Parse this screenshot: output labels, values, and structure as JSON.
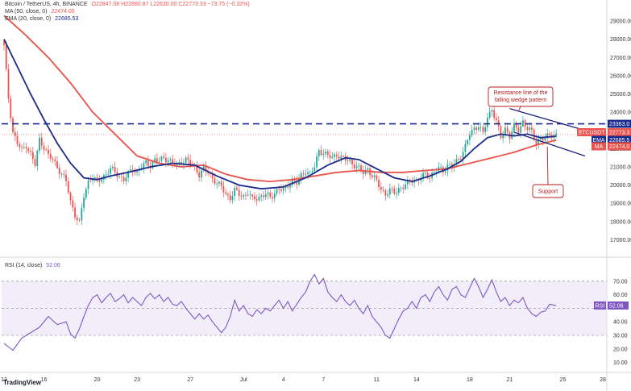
{
  "header": {
    "symbol": "Bitcoin / TetherUS, 4h, BINANCE",
    "ohlc": "O22847.08 H22880.87 L22630.00 C22773.33 −73.75 (−0.32%)",
    "ma_legend": "MA (50, close, 0)",
    "ma_value": "22474.05",
    "ema_legend": "EMA (20, close, 0)",
    "ema_value": "22685.53",
    "rsi_legend": "RSI (14, close)",
    "rsi_value": "52.06"
  },
  "colors": {
    "up": "#26a69a",
    "down": "#ef5350",
    "ma": "#e8534a",
    "ema": "#1a2b8c",
    "rsi": "#7e57c2",
    "resistance": "#1a237e",
    "annotation": "#b71c1c"
  },
  "branding": {
    "logo": "TradingView"
  },
  "chart_data": {
    "type": "candlestick",
    "price_axis": {
      "ylim": [
        16800,
        29800
      ],
      "ticks": [
        "29000.00",
        "28000.00",
        "27000.00",
        "26000.00",
        "25000.00",
        "24000.00",
        "22000.00",
        "21000.00",
        "20000.00",
        "19000.00",
        "18000.00",
        "17000.00"
      ]
    },
    "x_axis": {
      "ticks": [
        {
          "label": "13",
          "t": 0
        },
        {
          "label": "16",
          "t": 18
        },
        {
          "label": "20",
          "t": 42
        },
        {
          "label": "23",
          "t": 60
        },
        {
          "label": "27",
          "t": 84
        },
        {
          "label": "Jul",
          "t": 108
        },
        {
          "label": "4",
          "t": 126
        },
        {
          "label": "7",
          "t": 144
        },
        {
          "label": "11",
          "t": 168
        },
        {
          "label": "14",
          "t": 186
        },
        {
          "label": "18",
          "t": 210
        },
        {
          "label": "21",
          "t": 228
        },
        {
          "label": "25",
          "t": 252
        },
        {
          "label": "28",
          "t": 270
        }
      ]
    },
    "last_candle_t": 249,
    "close_path": [
      [
        0,
        27600
      ],
      [
        2,
        24800
      ],
      [
        4,
        22900
      ],
      [
        6,
        22300
      ],
      [
        8,
        21900
      ],
      [
        10,
        22200
      ],
      [
        12,
        21700
      ],
      [
        14,
        21100
      ],
      [
        16,
        22500
      ],
      [
        18,
        22100
      ],
      [
        20,
        21600
      ],
      [
        22,
        21400
      ],
      [
        24,
        21000
      ],
      [
        26,
        20600
      ],
      [
        28,
        20200
      ],
      [
        30,
        19100
      ],
      [
        32,
        18400
      ],
      [
        34,
        17900
      ],
      [
        36,
        19400
      ],
      [
        38,
        20200
      ],
      [
        40,
        20500
      ],
      [
        42,
        20100
      ],
      [
        44,
        20400
      ],
      [
        46,
        20600
      ],
      [
        48,
        20900
      ],
      [
        50,
        20700
      ],
      [
        52,
        20500
      ],
      [
        54,
        20300
      ],
      [
        56,
        20600
      ],
      [
        58,
        20900
      ],
      [
        60,
        20700
      ],
      [
        62,
        21000
      ],
      [
        64,
        21200
      ],
      [
        66,
        21100
      ],
      [
        68,
        21400
      ],
      [
        70,
        21300
      ],
      [
        72,
        21500
      ],
      [
        74,
        21400
      ],
      [
        76,
        21200
      ],
      [
        78,
        21100
      ],
      [
        80,
        21300
      ],
      [
        82,
        21400
      ],
      [
        84,
        21200
      ],
      [
        86,
        21000
      ],
      [
        88,
        20600
      ],
      [
        90,
        20900
      ],
      [
        92,
        20700
      ],
      [
        94,
        20400
      ],
      [
        96,
        20100
      ],
      [
        98,
        19900
      ],
      [
        100,
        19500
      ],
      [
        102,
        19300
      ],
      [
        104,
        19700
      ],
      [
        106,
        19500
      ],
      [
        108,
        19400
      ],
      [
        110,
        19600
      ],
      [
        112,
        19200
      ],
      [
        114,
        19300
      ],
      [
        116,
        19400
      ],
      [
        118,
        19500
      ],
      [
        120,
        19300
      ],
      [
        122,
        19600
      ],
      [
        124,
        19800
      ],
      [
        126,
        19700
      ],
      [
        128,
        20000
      ],
      [
        130,
        20300
      ],
      [
        132,
        20100
      ],
      [
        134,
        20500
      ],
      [
        136,
        20800
      ],
      [
        138,
        20600
      ],
      [
        140,
        21000
      ],
      [
        142,
        21900
      ],
      [
        144,
        21800
      ],
      [
        146,
        21600
      ],
      [
        148,
        21500
      ],
      [
        150,
        21700
      ],
      [
        152,
        21500
      ],
      [
        154,
        21400
      ],
      [
        156,
        21300
      ],
      [
        158,
        21100
      ],
      [
        160,
        20900
      ],
      [
        162,
        20700
      ],
      [
        164,
        20900
      ],
      [
        166,
        20500
      ],
      [
        168,
        20200
      ],
      [
        170,
        19800
      ],
      [
        172,
        19500
      ],
      [
        174,
        19700
      ],
      [
        176,
        19600
      ],
      [
        178,
        19800
      ],
      [
        180,
        19900
      ],
      [
        182,
        20100
      ],
      [
        184,
        20300
      ],
      [
        186,
        20200
      ],
      [
        188,
        20400
      ],
      [
        190,
        20600
      ],
      [
        192,
        20500
      ],
      [
        194,
        20700
      ],
      [
        196,
        20900
      ],
      [
        198,
        20800
      ],
      [
        200,
        21100
      ],
      [
        202,
        21000
      ],
      [
        204,
        21300
      ],
      [
        206,
        21600
      ],
      [
        208,
        22100
      ],
      [
        210,
        22800
      ],
      [
        212,
        23100
      ],
      [
        214,
        23300
      ],
      [
        216,
        22800
      ],
      [
        218,
        23700
      ],
      [
        220,
        24200
      ],
      [
        222,
        23500
      ],
      [
        224,
        22600
      ],
      [
        226,
        23100
      ],
      [
        228,
        22700
      ],
      [
        230,
        23200
      ],
      [
        232,
        23000
      ],
      [
        234,
        23500
      ],
      [
        236,
        23100
      ],
      [
        238,
        22900
      ],
      [
        240,
        22300
      ],
      [
        242,
        22600
      ],
      [
        244,
        22500
      ],
      [
        246,
        22800
      ],
      [
        248,
        22700
      ],
      [
        249,
        22773
      ]
    ],
    "ma": [
      [
        0,
        29300
      ],
      [
        10,
        28200
      ],
      [
        20,
        27000
      ],
      [
        30,
        25600
      ],
      [
        40,
        24000
      ],
      [
        50,
        22800
      ],
      [
        60,
        21600
      ],
      [
        70,
        21200
      ],
      [
        80,
        21000
      ],
      [
        90,
        21100
      ],
      [
        100,
        20600
      ],
      [
        110,
        20300
      ],
      [
        120,
        20200
      ],
      [
        130,
        20300
      ],
      [
        140,
        20500
      ],
      [
        150,
        20700
      ],
      [
        160,
        20800
      ],
      [
        170,
        20700
      ],
      [
        180,
        20700
      ],
      [
        190,
        20800
      ],
      [
        200,
        20900
      ],
      [
        210,
        21200
      ],
      [
        220,
        21500
      ],
      [
        230,
        21800
      ],
      [
        240,
        22200
      ],
      [
        249,
        22474
      ]
    ],
    "ema": [
      [
        0,
        28000
      ],
      [
        6,
        26500
      ],
      [
        12,
        25000
      ],
      [
        18,
        23600
      ],
      [
        24,
        22300
      ],
      [
        30,
        21200
      ],
      [
        36,
        20400
      ],
      [
        42,
        20300
      ],
      [
        48,
        20500
      ],
      [
        56,
        20700
      ],
      [
        66,
        21000
      ],
      [
        76,
        21200
      ],
      [
        86,
        21100
      ],
      [
        96,
        20500
      ],
      [
        106,
        20000
      ],
      [
        116,
        19800
      ],
      [
        126,
        19900
      ],
      [
        136,
        20400
      ],
      [
        146,
        21100
      ],
      [
        154,
        21500
      ],
      [
        160,
        21400
      ],
      [
        168,
        20900
      ],
      [
        176,
        20400
      ],
      [
        184,
        20200
      ],
      [
        192,
        20500
      ],
      [
        200,
        20900
      ],
      [
        206,
        21300
      ],
      [
        212,
        22000
      ],
      [
        218,
        22600
      ],
      [
        224,
        22800
      ],
      [
        230,
        22700
      ],
      [
        236,
        22800
      ],
      [
        242,
        22600
      ],
      [
        249,
        22685
      ]
    ],
    "resistance_line": [
      [
        228,
        24200
      ],
      [
        262,
        23000
      ]
    ],
    "support_line": [
      [
        230,
        22900
      ],
      [
        262,
        21600
      ]
    ],
    "horizontal_level": 23363,
    "price_tags": [
      {
        "label": "23363.0",
        "price": 23363,
        "color": "#1a2b8c"
      },
      {
        "label": "BTCUSDT",
        "value": "22773.3",
        "time": "01:48:0",
        "price": 22900,
        "color": "#ef5350"
      },
      {
        "label": "EMA",
        "value": "22685.5",
        "price": 22480,
        "color": "#1a2b8c"
      },
      {
        "label": "MA",
        "value": "22474.0",
        "price": 22130,
        "color": "#e8534a"
      }
    ],
    "annotations": [
      {
        "text": [
          "Resistance line of the",
          "falling wedge pattern"
        ]
      },
      {
        "text": [
          "Support"
        ]
      }
    ],
    "rsi": {
      "ylim": [
        5,
        80
      ],
      "overbought": 70,
      "oversold": 30,
      "mid": 50,
      "ticks": [
        "70.00",
        "60.00",
        "40.00",
        "30.00",
        "20.00",
        "10.00"
      ],
      "current": "52.06",
      "path": [
        [
          0,
          24
        ],
        [
          4,
          19
        ],
        [
          8,
          28
        ],
        [
          12,
          32
        ],
        [
          16,
          36
        ],
        [
          20,
          44
        ],
        [
          24,
          38
        ],
        [
          28,
          40
        ],
        [
          30,
          31
        ],
        [
          32,
          28
        ],
        [
          34,
          35
        ],
        [
          36,
          44
        ],
        [
          38,
          52
        ],
        [
          40,
          58
        ],
        [
          42,
          60
        ],
        [
          44,
          54
        ],
        [
          46,
          58
        ],
        [
          48,
          61
        ],
        [
          50,
          55
        ],
        [
          52,
          57
        ],
        [
          54,
          60
        ],
        [
          56,
          54
        ],
        [
          58,
          58
        ],
        [
          60,
          55
        ],
        [
          62,
          52
        ],
        [
          64,
          58
        ],
        [
          66,
          61
        ],
        [
          68,
          57
        ],
        [
          70,
          60
        ],
        [
          72,
          55
        ],
        [
          74,
          58
        ],
        [
          76,
          53
        ],
        [
          78,
          52
        ],
        [
          80,
          55
        ],
        [
          82,
          50
        ],
        [
          84,
          46
        ],
        [
          86,
          42
        ],
        [
          88,
          46
        ],
        [
          90,
          42
        ],
        [
          92,
          45
        ],
        [
          94,
          40
        ],
        [
          96,
          36
        ],
        [
          98,
          32
        ],
        [
          100,
          36
        ],
        [
          102,
          44
        ],
        [
          104,
          56
        ],
        [
          106,
          48
        ],
        [
          108,
          52
        ],
        [
          110,
          46
        ],
        [
          112,
          44
        ],
        [
          114,
          49
        ],
        [
          116,
          46
        ],
        [
          118,
          50
        ],
        [
          120,
          48
        ],
        [
          122,
          52
        ],
        [
          124,
          56
        ],
        [
          126,
          50
        ],
        [
          128,
          55
        ],
        [
          130,
          48
        ],
        [
          132,
          53
        ],
        [
          134,
          58
        ],
        [
          136,
          62
        ],
        [
          138,
          70
        ],
        [
          140,
          75
        ],
        [
          142,
          68
        ],
        [
          144,
          72
        ],
        [
          146,
          62
        ],
        [
          148,
          58
        ],
        [
          150,
          55
        ],
        [
          152,
          60
        ],
        [
          154,
          55
        ],
        [
          156,
          52
        ],
        [
          158,
          56
        ],
        [
          160,
          50
        ],
        [
          162,
          46
        ],
        [
          164,
          52
        ],
        [
          166,
          44
        ],
        [
          168,
          40
        ],
        [
          170,
          36
        ],
        [
          172,
          30
        ],
        [
          174,
          28
        ],
        [
          176,
          35
        ],
        [
          178,
          42
        ],
        [
          180,
          48
        ],
        [
          182,
          50
        ],
        [
          184,
          55
        ],
        [
          186,
          50
        ],
        [
          188,
          58
        ],
        [
          190,
          60
        ],
        [
          192,
          55
        ],
        [
          194,
          62
        ],
        [
          196,
          66
        ],
        [
          198,
          60
        ],
        [
          200,
          56
        ],
        [
          202,
          64
        ],
        [
          204,
          66
        ],
        [
          206,
          60
        ],
        [
          208,
          58
        ],
        [
          210,
          65
        ],
        [
          212,
          72
        ],
        [
          214,
          66
        ],
        [
          216,
          58
        ],
        [
          218,
          64
        ],
        [
          220,
          71
        ],
        [
          222,
          62
        ],
        [
          224,
          55
        ],
        [
          226,
          58
        ],
        [
          228,
          52
        ],
        [
          230,
          56
        ],
        [
          232,
          54
        ],
        [
          234,
          58
        ],
        [
          236,
          50
        ],
        [
          238,
          46
        ],
        [
          240,
          44
        ],
        [
          242,
          47
        ],
        [
          244,
          48
        ],
        [
          246,
          53
        ],
        [
          249,
          52
        ]
      ]
    }
  }
}
